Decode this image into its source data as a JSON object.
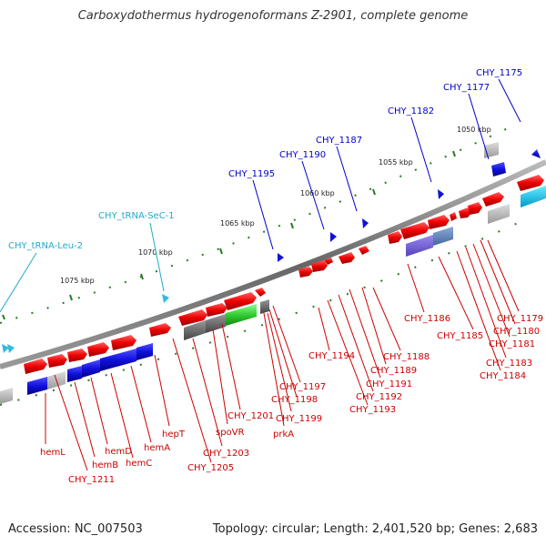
{
  "title": "Carboxydothermus hydrogenoformans Z-2901, complete genome",
  "footer": {
    "accession": "Accession: NC_007503",
    "topology": "Topology: circular; Length: 2,401,520 bp; Genes: 2,683"
  },
  "colors": {
    "forward": "#ee0000",
    "reverse_blue": "#1010dd",
    "rna": "#33bbdd",
    "backbone": "#777777",
    "label_red": "#cc0000",
    "label_blue": "#0000cc",
    "label_cyan": "#22aacc",
    "tick_green": "#2a7a2a"
  },
  "scale_labels": [
    "1075 kbp",
    "1070 kbp",
    "1065 kbp",
    "1060 kbp",
    "1055 kbp",
    "1050 kbp"
  ],
  "top_labels": [
    {
      "text": "CHY_tRNA-Leu-2",
      "color": "cyan"
    },
    {
      "text": "CHY_tRNA-SeC-1",
      "color": "cyan"
    },
    {
      "text": "CHY_1195",
      "color": "blue"
    },
    {
      "text": "CHY_1190",
      "color": "blue"
    },
    {
      "text": "CHY_1187",
      "color": "blue"
    },
    {
      "text": "CHY_1182",
      "color": "blue"
    },
    {
      "text": "CHY_1177",
      "color": "blue"
    },
    {
      "text": "CHY_1175",
      "color": "blue"
    }
  ],
  "bottom_labels": [
    "hemL",
    "CHY_1211",
    "hemB",
    "hemD",
    "hemC",
    "hemA",
    "hepT",
    "CHY_1205",
    "CHY_1203",
    "spoVR",
    "CHY_1201",
    "prkA",
    "CHY_1199",
    "CHY_1198",
    "CHY_1197",
    "CHY_1194",
    "CHY_1193",
    "CHY_1192",
    "CHY_1191",
    "CHY_1189",
    "CHY_1188",
    "CHY_1186",
    "CHY_1185",
    "CHY_1184",
    "CHY_1183",
    "CHY_1181",
    "CHY_1180",
    "CHY_1179"
  ]
}
